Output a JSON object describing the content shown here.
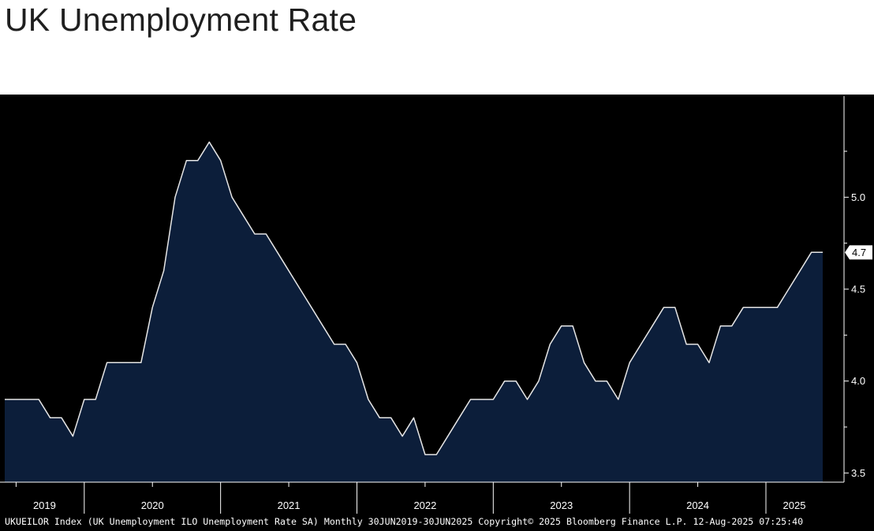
{
  "chart_data": {
    "type": "area",
    "title": "UK Unemployment Rate",
    "frequency": "Monthly",
    "x_start": "2019-06",
    "x_end": "2025-06",
    "x": [
      "2019-06",
      "2019-07",
      "2019-08",
      "2019-09",
      "2019-10",
      "2019-11",
      "2019-12",
      "2020-01",
      "2020-02",
      "2020-03",
      "2020-04",
      "2020-05",
      "2020-06",
      "2020-07",
      "2020-08",
      "2020-09",
      "2020-10",
      "2020-11",
      "2020-12",
      "2021-01",
      "2021-02",
      "2021-03",
      "2021-04",
      "2021-05",
      "2021-06",
      "2021-07",
      "2021-08",
      "2021-09",
      "2021-10",
      "2021-11",
      "2021-12",
      "2022-01",
      "2022-02",
      "2022-03",
      "2022-04",
      "2022-05",
      "2022-06",
      "2022-07",
      "2022-08",
      "2022-09",
      "2022-10",
      "2022-11",
      "2022-12",
      "2023-01",
      "2023-02",
      "2023-03",
      "2023-04",
      "2023-05",
      "2023-06",
      "2023-07",
      "2023-08",
      "2023-09",
      "2023-10",
      "2023-11",
      "2023-12",
      "2024-01",
      "2024-02",
      "2024-03",
      "2024-04",
      "2024-05",
      "2024-06",
      "2024-07",
      "2024-08",
      "2024-09",
      "2024-10",
      "2024-11",
      "2024-12",
      "2025-01",
      "2025-02",
      "2025-03",
      "2025-04",
      "2025-05",
      "2025-06"
    ],
    "values": [
      3.9,
      3.9,
      3.9,
      3.9,
      3.8,
      3.8,
      3.7,
      3.9,
      3.9,
      4.1,
      4.1,
      4.1,
      4.1,
      4.4,
      4.6,
      5.0,
      5.2,
      5.2,
      5.3,
      5.2,
      5.0,
      4.9,
      4.8,
      4.8,
      4.7,
      4.6,
      4.5,
      4.4,
      4.3,
      4.2,
      4.2,
      4.1,
      3.9,
      3.8,
      3.8,
      3.7,
      3.8,
      3.6,
      3.6,
      3.7,
      3.8,
      3.9,
      3.9,
      3.9,
      4.0,
      4.0,
      3.9,
      4.0,
      4.2,
      4.3,
      4.3,
      4.1,
      4.0,
      4.0,
      3.9,
      4.1,
      4.2,
      4.3,
      4.4,
      4.4,
      4.2,
      4.2,
      4.1,
      4.3,
      4.3,
      4.4,
      4.4,
      4.4,
      4.4,
      4.5,
      4.6,
      4.7,
      4.7
    ],
    "ylim": [
      3.45,
      5.55
    ],
    "y_ticks": [
      "3.5",
      "4.0",
      "4.5",
      "5.0"
    ],
    "x_year_labels": [
      "2019",
      "2020",
      "2021",
      "2022",
      "2023",
      "2024",
      "2025"
    ],
    "last_value_label": "4.7",
    "grid": false,
    "colors": {
      "background": "#000000",
      "area_fill": "#0c1e3a",
      "line": "#e6e6e6",
      "text": "#ffffff"
    }
  },
  "footer": {
    "text": "UKUEILOR Index (UK Unemployment ILO Unemployment Rate SA)  Monthly 30JUN2019-30JUN2025  Copyright© 2025 Bloomberg Finance L.P.  12-Aug-2025 07:25:40"
  }
}
